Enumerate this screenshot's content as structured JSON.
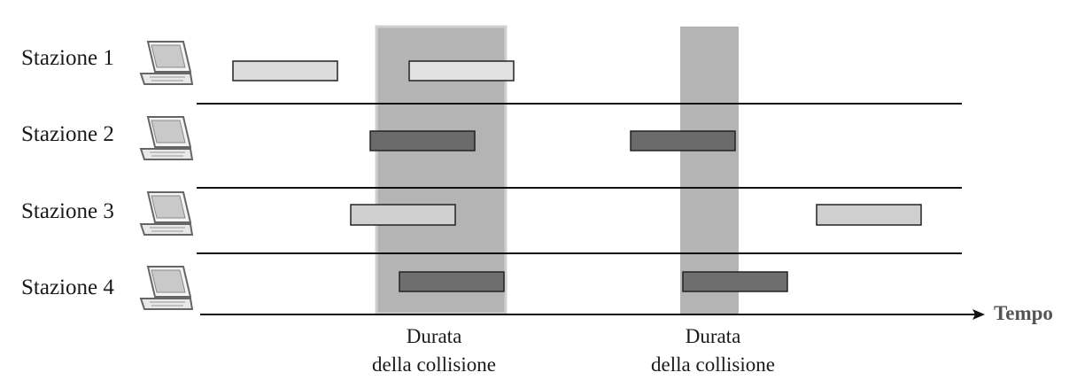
{
  "stations": [
    {
      "label": "Stazione 1"
    },
    {
      "label": "Stazione 2"
    },
    {
      "label": "Stazione 3"
    },
    {
      "label": "Stazione 4"
    }
  ],
  "collisions": [
    {
      "caption_line1": "Durata",
      "caption_line2": "della collisione"
    },
    {
      "caption_line1": "Durata",
      "caption_line2": "della collisione"
    }
  ],
  "axis": {
    "label": "Tempo"
  },
  "colors": {
    "collision_band_1": "#b4b4b4",
    "collision_band_2": "#b4b4b4",
    "frame_light": "#d9d9d9",
    "frame_light_2": "#c8c8c8",
    "frame_dark": "#6e6e6e",
    "line": "#111111"
  }
}
